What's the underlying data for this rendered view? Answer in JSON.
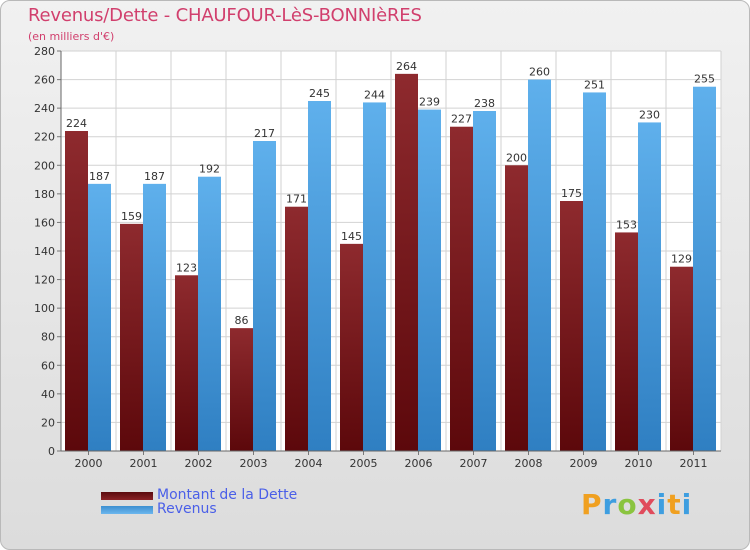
{
  "chart_data": {
    "type": "bar",
    "title": "Revenus/Dette - CHAUFOUR-LèS-BONNIèRES",
    "subtitle": "(en milliers d'€)",
    "categories": [
      "2000",
      "2001",
      "2002",
      "2003",
      "2004",
      "2005",
      "2006",
      "2007",
      "2008",
      "2009",
      "2010",
      "2011"
    ],
    "series": [
      {
        "name": "Montant de la Dette",
        "color": "#7a1518",
        "values": [
          224,
          159,
          123,
          86,
          171,
          145,
          264,
          227,
          200,
          175,
          153,
          129
        ]
      },
      {
        "name": "Revenus",
        "color": "#5aa9e6",
        "values": [
          187,
          187,
          192,
          217,
          245,
          244,
          239,
          238,
          260,
          251,
          230,
          255
        ]
      }
    ],
    "ylim": [
      0,
      280
    ],
    "yticks": [
      0,
      20,
      40,
      60,
      80,
      100,
      120,
      140,
      160,
      180,
      200,
      220,
      240,
      260,
      280
    ],
    "grid": true,
    "legend": "bottom-left"
  },
  "logo_text": "Proxiti"
}
